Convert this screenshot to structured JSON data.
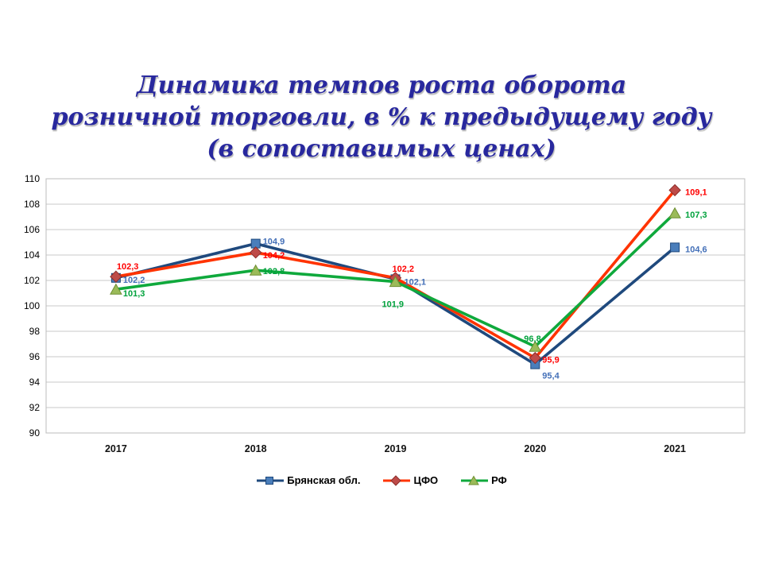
{
  "title": {
    "lines": [
      "Динамика темпов роста оборота",
      "розничной торговли, в % к предыдущему году",
      "(в сопоставимых ценах)"
    ],
    "color": "#28289E"
  },
  "chart_data": {
    "type": "line",
    "categories": [
      "2017",
      "2018",
      "2019",
      "2020",
      "2021"
    ],
    "ylim": [
      90,
      110
    ],
    "ytick_step": 2,
    "y_tick_labels": [
      "90",
      "92",
      "94",
      "96",
      "98",
      "100",
      "102",
      "104",
      "106",
      "108",
      "110"
    ],
    "grid": true,
    "legend_position": "bottom",
    "grid_color": "#C9C9C9",
    "axis_color": "#BDBDBD",
    "series": [
      {
        "id": "bryansk",
        "name": "Брянская обл.",
        "values": [
          102.2,
          104.9,
          102.1,
          95.4,
          104.6
        ],
        "labels": [
          "102,2",
          "104,9",
          "102,1",
          "95,4",
          "104,6"
        ],
        "line_color": "#1F497D",
        "marker": "square",
        "marker_fill": "#4A7EBB",
        "marker_edge": "#1F497D",
        "label_color": "#4470B8",
        "label_offsets": [
          [
            9,
            2
          ],
          [
            9,
            -3
          ],
          [
            11,
            3
          ],
          [
            9,
            14
          ],
          [
            13,
            2
          ]
        ]
      },
      {
        "id": "cfo",
        "name": "ЦФО",
        "values": [
          102.3,
          104.2,
          102.2,
          95.9,
          109.1
        ],
        "labels": [
          "102,3",
          "104,2",
          "102,2",
          "95,9",
          "109,1"
        ],
        "line_color": "#FF3300",
        "marker": "diamond",
        "marker_fill": "#BE4B48",
        "marker_edge": "#8C2E2C",
        "label_color": "#FF0000",
        "label_offsets": [
          [
            1,
            -13
          ],
          [
            9,
            3
          ],
          [
            -4,
            -12
          ],
          [
            9,
            2
          ],
          [
            13,
            2
          ]
        ]
      },
      {
        "id": "rf",
        "name": "РФ",
        "values": [
          101.3,
          102.8,
          101.9,
          96.8,
          107.3
        ],
        "labels": [
          "101,3",
          "102,8",
          "101,9",
          "96,8",
          "107,3"
        ],
        "line_color": "#0FA93C",
        "marker": "triangle",
        "marker_fill": "#9BBB59",
        "marker_edge": "#6F8F33",
        "label_color": "#00A23C",
        "label_offsets": [
          [
            9,
            5
          ],
          [
            9,
            1
          ],
          [
            -17,
            28
          ],
          [
            -14,
            -10
          ],
          [
            13,
            2
          ]
        ]
      }
    ]
  }
}
